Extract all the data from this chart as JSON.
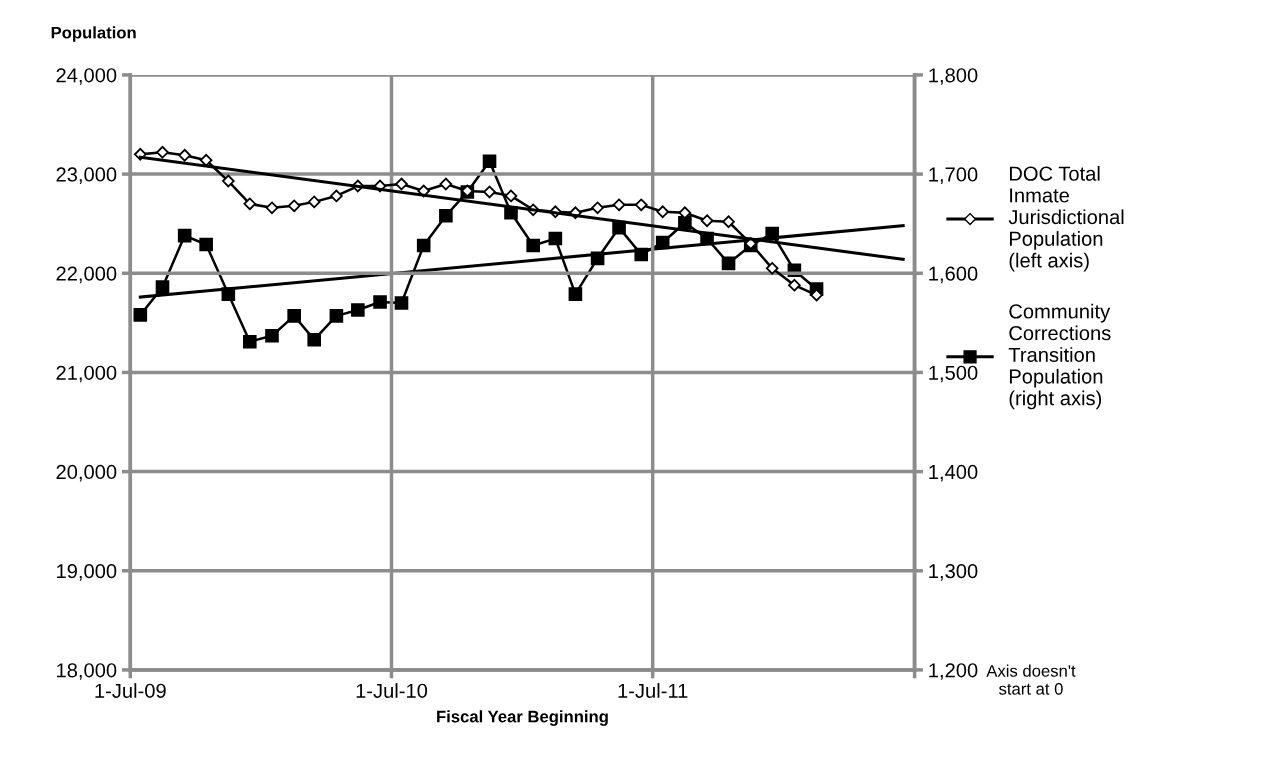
{
  "chart_data": {
    "type": "line",
    "ylabel": "Population",
    "xlabel": "Fiscal Year Beginning",
    "x": [
      "2009-07-15",
      "2009-08-15",
      "2009-09-15",
      "2009-10-15",
      "2009-11-15",
      "2009-12-15",
      "2010-01-15",
      "2010-02-15",
      "2010-03-15",
      "2010-04-15",
      "2010-05-15",
      "2010-06-15",
      "2010-07-15",
      "2010-08-15",
      "2010-09-15",
      "2010-10-15",
      "2010-11-15",
      "2010-12-15",
      "2011-01-15",
      "2011-02-15",
      "2011-03-15",
      "2011-04-15",
      "2011-05-15",
      "2011-06-15",
      "2011-07-15",
      "2011-08-15",
      "2011-09-15",
      "2011-10-15",
      "2011-11-15",
      "2011-12-15",
      "2012-01-15",
      "2012-02-15"
    ],
    "series": [
      {
        "name": "DOC Total\nInmate\nJurisdictional\nPopulation\n(left axis)",
        "color": "#000000",
        "marker": "diamond",
        "axis": "y",
        "values": [
          23200,
          23220,
          23190,
          23140,
          22930,
          22700,
          22660,
          22680,
          22720,
          22780,
          22880,
          22880,
          22900,
          22830,
          22900,
          22830,
          22820,
          22780,
          22640,
          22620,
          22610,
          22660,
          22690,
          22690,
          22620,
          22610,
          22530,
          22520,
          22300,
          22050,
          21880,
          21780
        ]
      },
      {
        "name": "Community\nCorrections\nTransition\nPopulation\n(right axis)",
        "color": "#000000",
        "marker": "square",
        "axis": "y2",
        "values": [
          1558,
          1586,
          1638,
          1629,
          1579,
          1531,
          1537,
          1557,
          1533,
          1557,
          1563,
          1571,
          1570,
          1628,
          1658,
          1682,
          1713,
          1661,
          1628,
          1635,
          1579,
          1615,
          1646,
          1619,
          1631,
          1651,
          1635,
          1610,
          1628,
          1640,
          1603,
          1584
        ]
      },
      {
        "type": "line",
        "color": "#000000",
        "marker": "none",
        "axis": "y",
        "x": [
          "2009-07-15",
          "2012-06-15"
        ],
        "values": [
          23170,
          22140
        ]
      },
      {
        "type": "line",
        "color": "#000000",
        "marker": "none",
        "axis": "y2",
        "x": [
          "2009-07-15",
          "2012-06-15"
        ],
        "values": [
          1576,
          1648
        ]
      }
    ],
    "xlim": [
      "2009-07-01",
      "2012-07-01"
    ],
    "xticks": [
      {
        "value": "2009-07-01",
        "label": "1-Jul-09"
      },
      {
        "value": "2010-07-01",
        "label": "1-Jul-10"
      },
      {
        "value": "2011-07-01",
        "label": "1-Jul-11"
      },
      {
        "value": "2012-07-01",
        "label": null
      }
    ],
    "ylim": [
      18000,
      24000
    ],
    "yticks": [
      {
        "value": 18000,
        "label": "18,000"
      },
      {
        "value": 19000,
        "label": "19,000"
      },
      {
        "value": 20000,
        "label": "20,000"
      },
      {
        "value": 21000,
        "label": "21,000"
      },
      {
        "value": 22000,
        "label": "22,000"
      },
      {
        "value": 23000,
        "label": "23,000"
      },
      {
        "value": 24000,
        "label": "24,000"
      }
    ],
    "y2lim": [
      1200,
      1800
    ],
    "y2ticks": [
      {
        "value": 1200,
        "label": "1,200"
      },
      {
        "value": 1300,
        "label": "1,300"
      },
      {
        "value": 1400,
        "label": "1,400"
      },
      {
        "value": 1500,
        "label": "1,500"
      },
      {
        "value": 1600,
        "label": "1,600"
      },
      {
        "value": 1700,
        "label": "1,700"
      },
      {
        "value": 1800,
        "label": "1,800"
      }
    ],
    "grid": true,
    "legend": "right",
    "line_style": "solid",
    "annotations": [
      "Axis doesn't\nstart at 0"
    ]
  }
}
